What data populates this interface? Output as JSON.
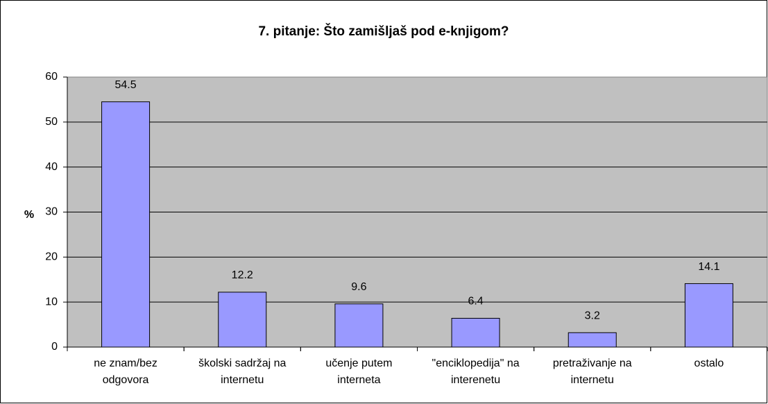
{
  "chart_data": {
    "type": "bar",
    "title": "7. pitanje: Što zamišljaš pod e-knjigom?",
    "y_label": "%",
    "categories": [
      "ne znam/bez odgovora",
      "školski sadržaj na internetu",
      "učenje putem interneta",
      "\"enciklopedija\" na interenetu",
      "pretraživanje na internetu",
      "ostalo"
    ],
    "values": [
      54.5,
      12.2,
      9.6,
      6.4,
      3.2,
      14.1
    ],
    "color": "#9999ff",
    "plot_background": "#c0c0c0",
    "ylim": [
      0,
      60
    ],
    "yticks": [
      0,
      10,
      20,
      30,
      40,
      50,
      60
    ],
    "grid": true
  }
}
